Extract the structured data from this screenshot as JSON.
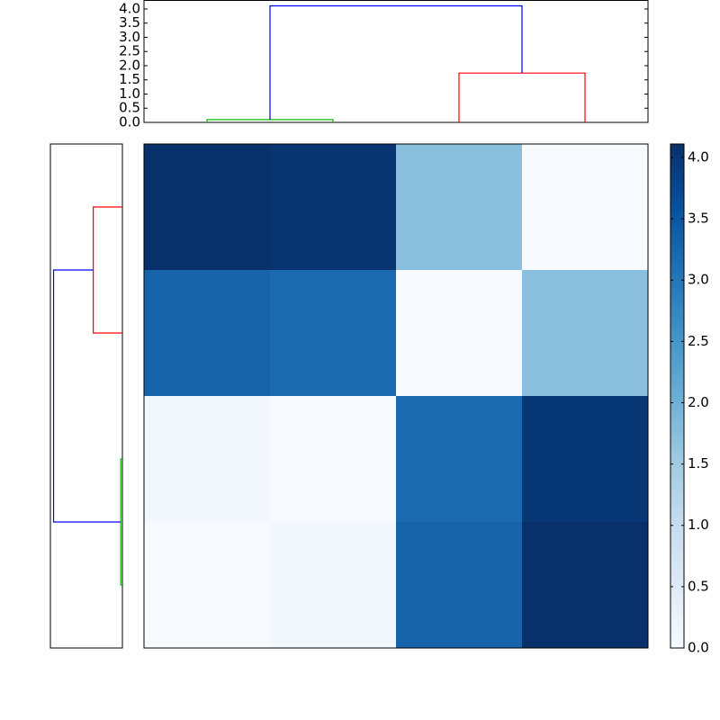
{
  "chart_data": [
    {
      "type": "dendrogram",
      "orientation": "top",
      "xlim": [
        0,
        40
      ],
      "ylim": [
        0,
        4.3
      ],
      "yticks": [
        {
          "value": 0,
          "label": "0.0"
        },
        {
          "value": 0.5,
          "label": "0.5"
        },
        {
          "value": 1,
          "label": "1.0"
        },
        {
          "value": 1.5,
          "label": "1.5"
        },
        {
          "value": 2,
          "label": "2.0"
        },
        {
          "value": 2.5,
          "label": "2.5"
        },
        {
          "value": 3,
          "label": "3.0"
        },
        {
          "value": 3.5,
          "label": "3.5"
        },
        {
          "value": 4,
          "label": "4.0"
        }
      ],
      "links": [
        {
          "color": "#00bf00",
          "pos": [
            5,
            5,
            15,
            15
          ],
          "height": [
            0,
            0.1,
            0.1,
            0
          ]
        },
        {
          "color": "#ff0000",
          "pos": [
            25,
            25,
            35,
            35
          ],
          "height": [
            0,
            1.74,
            1.74,
            0
          ]
        },
        {
          "color": "#0000ff",
          "pos": [
            10,
            10,
            30,
            30
          ],
          "height": [
            0.1,
            4.11,
            4.11,
            1.74
          ]
        }
      ]
    },
    {
      "type": "dendrogram",
      "orientation": "left",
      "xlim": [
        4.3,
        0
      ],
      "ylim": [
        0,
        40
      ],
      "links": [
        {
          "color": "#00bf00",
          "pos": [
            5,
            5,
            15,
            15
          ],
          "height": [
            0,
            0.1,
            0.1,
            0
          ]
        },
        {
          "color": "#ff0000",
          "pos": [
            25,
            25,
            35,
            35
          ],
          "height": [
            0,
            1.74,
            1.74,
            0
          ]
        },
        {
          "color": "#0000ff",
          "pos": [
            10,
            10,
            30,
            30
          ],
          "height": [
            0.1,
            4.11,
            4.11,
            1.74
          ]
        }
      ]
    },
    {
      "type": "heatmap",
      "cmap": "Blues",
      "vlim": [
        0,
        4.11
      ],
      "values": [
        [
          4.11,
          4.05,
          1.74,
          0.0
        ],
        [
          3.3,
          3.2,
          0.0,
          1.74
        ],
        [
          0.1,
          0.0,
          3.2,
          4.0
        ],
        [
          0.0,
          0.1,
          3.3,
          4.11
        ]
      ],
      "colorbar_ticks": [
        {
          "value": 0,
          "label": "0.0"
        },
        {
          "value": 0.5,
          "label": "0.5"
        },
        {
          "value": 1,
          "label": "1.0"
        },
        {
          "value": 1.5,
          "label": "1.5"
        },
        {
          "value": 2,
          "label": "2.0"
        },
        {
          "value": 2.5,
          "label": "2.5"
        },
        {
          "value": 3,
          "label": "3.0"
        },
        {
          "value": 3.5,
          "label": "3.5"
        },
        {
          "value": 4,
          "label": "4.0"
        }
      ]
    }
  ]
}
